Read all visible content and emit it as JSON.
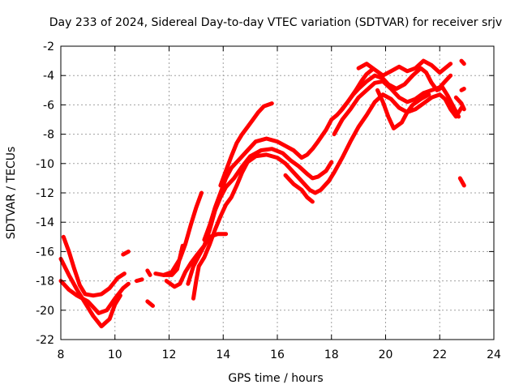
{
  "chart_data": {
    "type": "scatter",
    "title": "Day 233 of 2024, Sidereal Day-to-day VTEC variation (SDTVAR) for receiver srjv",
    "xlabel": "GPS time / hours",
    "ylabel": "SDTVAR / TECUs",
    "xlim": [
      8,
      24
    ],
    "ylim": [
      -22,
      -2
    ],
    "xticks": [
      "8",
      "10",
      "12",
      "14",
      "16",
      "18",
      "20",
      "22",
      "24"
    ],
    "yticks": [
      "-2",
      "-4",
      "-6",
      "-8",
      "-10",
      "-12",
      "-14",
      "-16",
      "-18",
      "-20",
      "-22"
    ],
    "grid": true,
    "marker": "+",
    "color": "#ff0000",
    "series": [
      {
        "name": "track-1",
        "points": [
          [
            8.1,
            -15.0
          ],
          [
            8.3,
            -16.0
          ],
          [
            8.5,
            -17.2
          ],
          [
            8.7,
            -18.3
          ],
          [
            8.9,
            -18.9
          ],
          [
            9.2,
            -19.0
          ],
          [
            9.5,
            -18.9
          ],
          [
            9.8,
            -18.5
          ],
          [
            10.1,
            -17.8
          ],
          [
            10.35,
            -17.5
          ]
        ]
      },
      {
        "name": "track-2",
        "points": [
          [
            8.0,
            -18.0
          ],
          [
            8.3,
            -18.6
          ],
          [
            8.6,
            -19.0
          ],
          [
            9.0,
            -19.4
          ],
          [
            9.4,
            -20.2
          ],
          [
            9.7,
            -20.0
          ],
          [
            10.0,
            -19.2
          ],
          [
            10.3,
            -18.5
          ],
          [
            10.5,
            -18.2
          ]
        ]
      },
      {
        "name": "track-3",
        "points": [
          [
            8.0,
            -16.5
          ],
          [
            8.3,
            -17.6
          ],
          [
            8.6,
            -18.6
          ],
          [
            8.9,
            -19.5
          ],
          [
            9.2,
            -20.4
          ],
          [
            9.5,
            -21.1
          ],
          [
            9.8,
            -20.6
          ],
          [
            10.0,
            -19.6
          ],
          [
            10.2,
            -19.0
          ]
        ]
      },
      {
        "name": "track-4",
        "points": [
          [
            10.3,
            -16.2
          ],
          [
            10.5,
            -16.0
          ]
        ]
      },
      {
        "name": "track-5",
        "points": [
          [
            10.8,
            -18.0
          ],
          [
            11.0,
            -17.9
          ]
        ]
      },
      {
        "name": "track-6",
        "points": [
          [
            11.2,
            -17.3
          ],
          [
            11.3,
            -17.6
          ]
        ]
      },
      {
        "name": "track-7",
        "points": [
          [
            11.2,
            -19.4
          ],
          [
            11.4,
            -19.7
          ]
        ]
      },
      {
        "name": "track-8",
        "points": [
          [
            11.5,
            -17.5
          ],
          [
            11.8,
            -17.6
          ],
          [
            12.1,
            -17.4
          ],
          [
            12.4,
            -16.5
          ],
          [
            12.6,
            -15.5
          ],
          [
            12.8,
            -14.2
          ],
          [
            13.0,
            -13.0
          ],
          [
            13.2,
            -12.0
          ]
        ]
      },
      {
        "name": "track-9",
        "points": [
          [
            11.9,
            -18.0
          ],
          [
            12.2,
            -18.4
          ],
          [
            12.4,
            -18.2
          ],
          [
            12.6,
            -17.4
          ],
          [
            12.8,
            -16.8
          ],
          [
            13.0,
            -16.3
          ],
          [
            13.3,
            -15.6
          ],
          [
            13.5,
            -15.0
          ],
          [
            13.8,
            -14.8
          ],
          [
            14.1,
            -14.8
          ]
        ]
      },
      {
        "name": "track-10",
        "points": [
          [
            11.8,
            -17.6
          ],
          [
            12.1,
            -17.6
          ],
          [
            12.3,
            -17.2
          ],
          [
            12.4,
            -16.4
          ],
          [
            12.5,
            -15.6
          ]
        ]
      },
      {
        "name": "track-11",
        "points": [
          [
            12.7,
            -18.2
          ],
          [
            12.9,
            -17.0
          ],
          [
            13.1,
            -16.3
          ],
          [
            13.3,
            -15.6
          ],
          [
            13.5,
            -14.5
          ],
          [
            13.7,
            -13.2
          ],
          [
            13.9,
            -12.3
          ],
          [
            14.1,
            -11.6
          ],
          [
            14.4,
            -11.0
          ],
          [
            14.7,
            -10.2
          ],
          [
            15.0,
            -9.5
          ],
          [
            15.4,
            -9.1
          ],
          [
            15.8,
            -9.0
          ],
          [
            16.2,
            -9.3
          ],
          [
            16.5,
            -9.8
          ],
          [
            16.8,
            -10.2
          ],
          [
            17.1,
            -10.7
          ],
          [
            17.3,
            -11.0
          ],
          [
            17.5,
            -10.9
          ],
          [
            17.8,
            -10.5
          ],
          [
            18.0,
            -9.9
          ]
        ]
      },
      {
        "name": "track-12",
        "points": [
          [
            12.9,
            -19.2
          ],
          [
            13.0,
            -18.0
          ],
          [
            13.1,
            -17.0
          ],
          [
            13.3,
            -16.4
          ],
          [
            13.5,
            -15.5
          ],
          [
            13.7,
            -14.5
          ],
          [
            13.9,
            -13.6
          ],
          [
            14.1,
            -12.8
          ],
          [
            14.3,
            -12.3
          ],
          [
            14.5,
            -11.5
          ],
          [
            14.7,
            -10.6
          ],
          [
            14.9,
            -9.9
          ],
          [
            15.2,
            -9.5
          ],
          [
            15.6,
            -9.4
          ],
          [
            16.0,
            -9.6
          ],
          [
            16.3,
            -10.0
          ],
          [
            16.6,
            -10.6
          ],
          [
            16.9,
            -11.2
          ],
          [
            17.2,
            -11.8
          ],
          [
            17.4,
            -12.0
          ],
          [
            17.6,
            -11.8
          ],
          [
            17.9,
            -11.2
          ],
          [
            18.1,
            -10.6
          ],
          [
            18.4,
            -9.6
          ],
          [
            18.7,
            -8.5
          ],
          [
            19.0,
            -7.5
          ],
          [
            19.3,
            -6.7
          ],
          [
            19.6,
            -5.8
          ],
          [
            19.9,
            -5.3
          ],
          [
            20.2,
            -5.6
          ],
          [
            20.5,
            -6.2
          ],
          [
            20.8,
            -6.5
          ],
          [
            21.1,
            -6.3
          ],
          [
            21.4,
            -5.9
          ],
          [
            21.7,
            -5.5
          ],
          [
            22.0,
            -5.3
          ],
          [
            22.2,
            -5.6
          ],
          [
            22.4,
            -6.3
          ],
          [
            22.6,
            -6.8
          ],
          [
            22.8,
            -6.2
          ]
        ]
      },
      {
        "name": "track-13",
        "points": [
          [
            13.3,
            -15.2
          ],
          [
            13.5,
            -14.2
          ],
          [
            13.7,
            -13.0
          ],
          [
            13.9,
            -12.0
          ],
          [
            14.1,
            -11.0
          ],
          [
            14.3,
            -10.3
          ],
          [
            14.6,
            -9.7
          ],
          [
            14.9,
            -9.1
          ],
          [
            15.2,
            -8.5
          ],
          [
            15.6,
            -8.3
          ],
          [
            16.0,
            -8.5
          ],
          [
            16.3,
            -8.8
          ],
          [
            16.6,
            -9.1
          ],
          [
            16.9,
            -9.6
          ],
          [
            17.1,
            -9.4
          ],
          [
            17.3,
            -9.0
          ],
          [
            17.5,
            -8.5
          ],
          [
            17.8,
            -7.7
          ],
          [
            18.0,
            -7.0
          ],
          [
            18.2,
            -6.7
          ],
          [
            18.4,
            -6.3
          ],
          [
            18.6,
            -5.8
          ],
          [
            18.8,
            -5.3
          ],
          [
            19.0,
            -4.9
          ],
          [
            19.3,
            -4.4
          ],
          [
            19.6,
            -4.0
          ],
          [
            19.9,
            -4.2
          ],
          [
            20.1,
            -4.6
          ],
          [
            20.4,
            -4.9
          ],
          [
            20.7,
            -4.6
          ],
          [
            21.0,
            -4.0
          ],
          [
            21.3,
            -3.5
          ],
          [
            21.5,
            -3.8
          ],
          [
            21.7,
            -4.5
          ],
          [
            21.9,
            -5.0
          ],
          [
            22.1,
            -4.8
          ],
          [
            22.3,
            -5.4
          ],
          [
            22.5,
            -6.1
          ],
          [
            22.7,
            -6.8
          ]
        ]
      },
      {
        "name": "track-14",
        "points": [
          [
            13.9,
            -11.5
          ],
          [
            14.1,
            -10.5
          ],
          [
            14.3,
            -9.5
          ],
          [
            14.5,
            -8.6
          ],
          [
            14.7,
            -8.0
          ],
          [
            14.9,
            -7.5
          ],
          [
            15.1,
            -7.0
          ],
          [
            15.3,
            -6.5
          ],
          [
            15.5,
            -6.1
          ],
          [
            15.8,
            -5.9
          ]
        ]
      },
      {
        "name": "track-15",
        "points": [
          [
            16.3,
            -10.8
          ],
          [
            16.6,
            -11.4
          ],
          [
            16.9,
            -11.8
          ],
          [
            17.1,
            -12.3
          ],
          [
            17.3,
            -12.6
          ]
        ]
      },
      {
        "name": "track-16",
        "points": [
          [
            18.1,
            -8.0
          ],
          [
            18.4,
            -7.0
          ],
          [
            18.7,
            -6.3
          ],
          [
            19.0,
            -5.5
          ],
          [
            19.3,
            -5.0
          ],
          [
            19.6,
            -4.5
          ],
          [
            19.9,
            -4.4
          ],
          [
            20.2,
            -4.9
          ],
          [
            20.5,
            -5.5
          ],
          [
            20.8,
            -5.8
          ],
          [
            21.1,
            -5.6
          ],
          [
            21.4,
            -5.2
          ],
          [
            21.7,
            -5.0
          ],
          [
            22.0,
            -4.8
          ],
          [
            22.2,
            -4.4
          ],
          [
            22.4,
            -4.0
          ]
        ]
      },
      {
        "name": "track-17",
        "points": [
          [
            18.3,
            -6.5
          ],
          [
            18.6,
            -5.8
          ],
          [
            18.9,
            -5.0
          ],
          [
            19.1,
            -4.4
          ],
          [
            19.3,
            -3.9
          ],
          [
            19.5,
            -3.6
          ]
        ]
      },
      {
        "name": "track-18",
        "points": [
          [
            19.0,
            -3.5
          ],
          [
            19.3,
            -3.2
          ],
          [
            19.6,
            -3.6
          ],
          [
            19.9,
            -4.0
          ],
          [
            20.2,
            -3.7
          ],
          [
            20.5,
            -3.4
          ],
          [
            20.8,
            -3.7
          ],
          [
            21.1,
            -3.5
          ],
          [
            21.4,
            -3.0
          ],
          [
            21.7,
            -3.3
          ],
          [
            22.0,
            -3.8
          ],
          [
            22.2,
            -3.5
          ],
          [
            22.4,
            -3.2
          ]
        ]
      },
      {
        "name": "track-19",
        "points": [
          [
            19.7,
            -5.0
          ],
          [
            19.9,
            -5.8
          ],
          [
            20.1,
            -6.8
          ],
          [
            20.3,
            -7.6
          ],
          [
            20.6,
            -7.2
          ],
          [
            20.8,
            -6.5
          ],
          [
            21.0,
            -6.0
          ],
          [
            21.3,
            -5.6
          ],
          [
            21.6,
            -5.3
          ]
        ]
      },
      {
        "name": "track-20",
        "points": [
          [
            22.6,
            -5.5
          ],
          [
            22.8,
            -5.9
          ],
          [
            22.9,
            -6.3
          ]
        ]
      },
      {
        "name": "track-21",
        "points": [
          [
            22.8,
            -5.0
          ],
          [
            22.9,
            -4.9
          ]
        ]
      },
      {
        "name": "track-22",
        "points": [
          [
            22.8,
            -3.0
          ],
          [
            22.9,
            -3.2
          ]
        ]
      },
      {
        "name": "track-23",
        "points": [
          [
            22.75,
            -11.0
          ],
          [
            22.9,
            -11.5
          ]
        ]
      }
    ]
  }
}
